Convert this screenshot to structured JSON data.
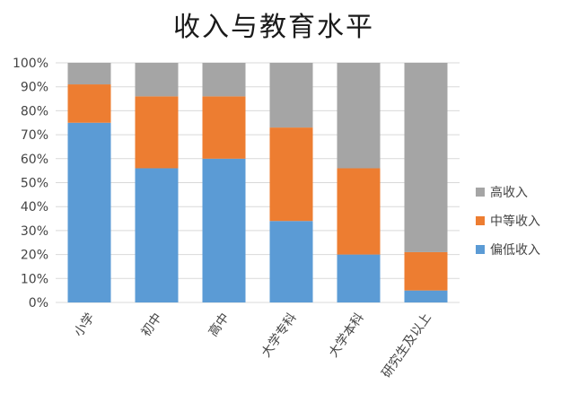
{
  "chart_data": {
    "type": "bar",
    "stacked": true,
    "percent": true,
    "title": "收入与教育水平",
    "categories": [
      "小学",
      "初中",
      "高中",
      "大学专科",
      "大学本科",
      "研究生及以上"
    ],
    "series": [
      {
        "name": "偏低收入",
        "color": "#5b9bd5",
        "values": [
          75,
          56,
          60,
          34,
          20,
          5
        ]
      },
      {
        "name": "中等收入",
        "color": "#ed7d31",
        "values": [
          16,
          30,
          26,
          39,
          36,
          16
        ]
      },
      {
        "name": "高收入",
        "color": "#a5a5a5",
        "values": [
          9,
          14,
          14,
          27,
          44,
          79
        ]
      }
    ],
    "yticks": [
      "0%",
      "10%",
      "20%",
      "30%",
      "40%",
      "50%",
      "60%",
      "70%",
      "80%",
      "90%",
      "100%"
    ],
    "ylim": [
      0,
      100
    ],
    "grid": true,
    "legend_position": "right",
    "legend_order": [
      "高收入",
      "中等收入",
      "偏低收入"
    ]
  }
}
